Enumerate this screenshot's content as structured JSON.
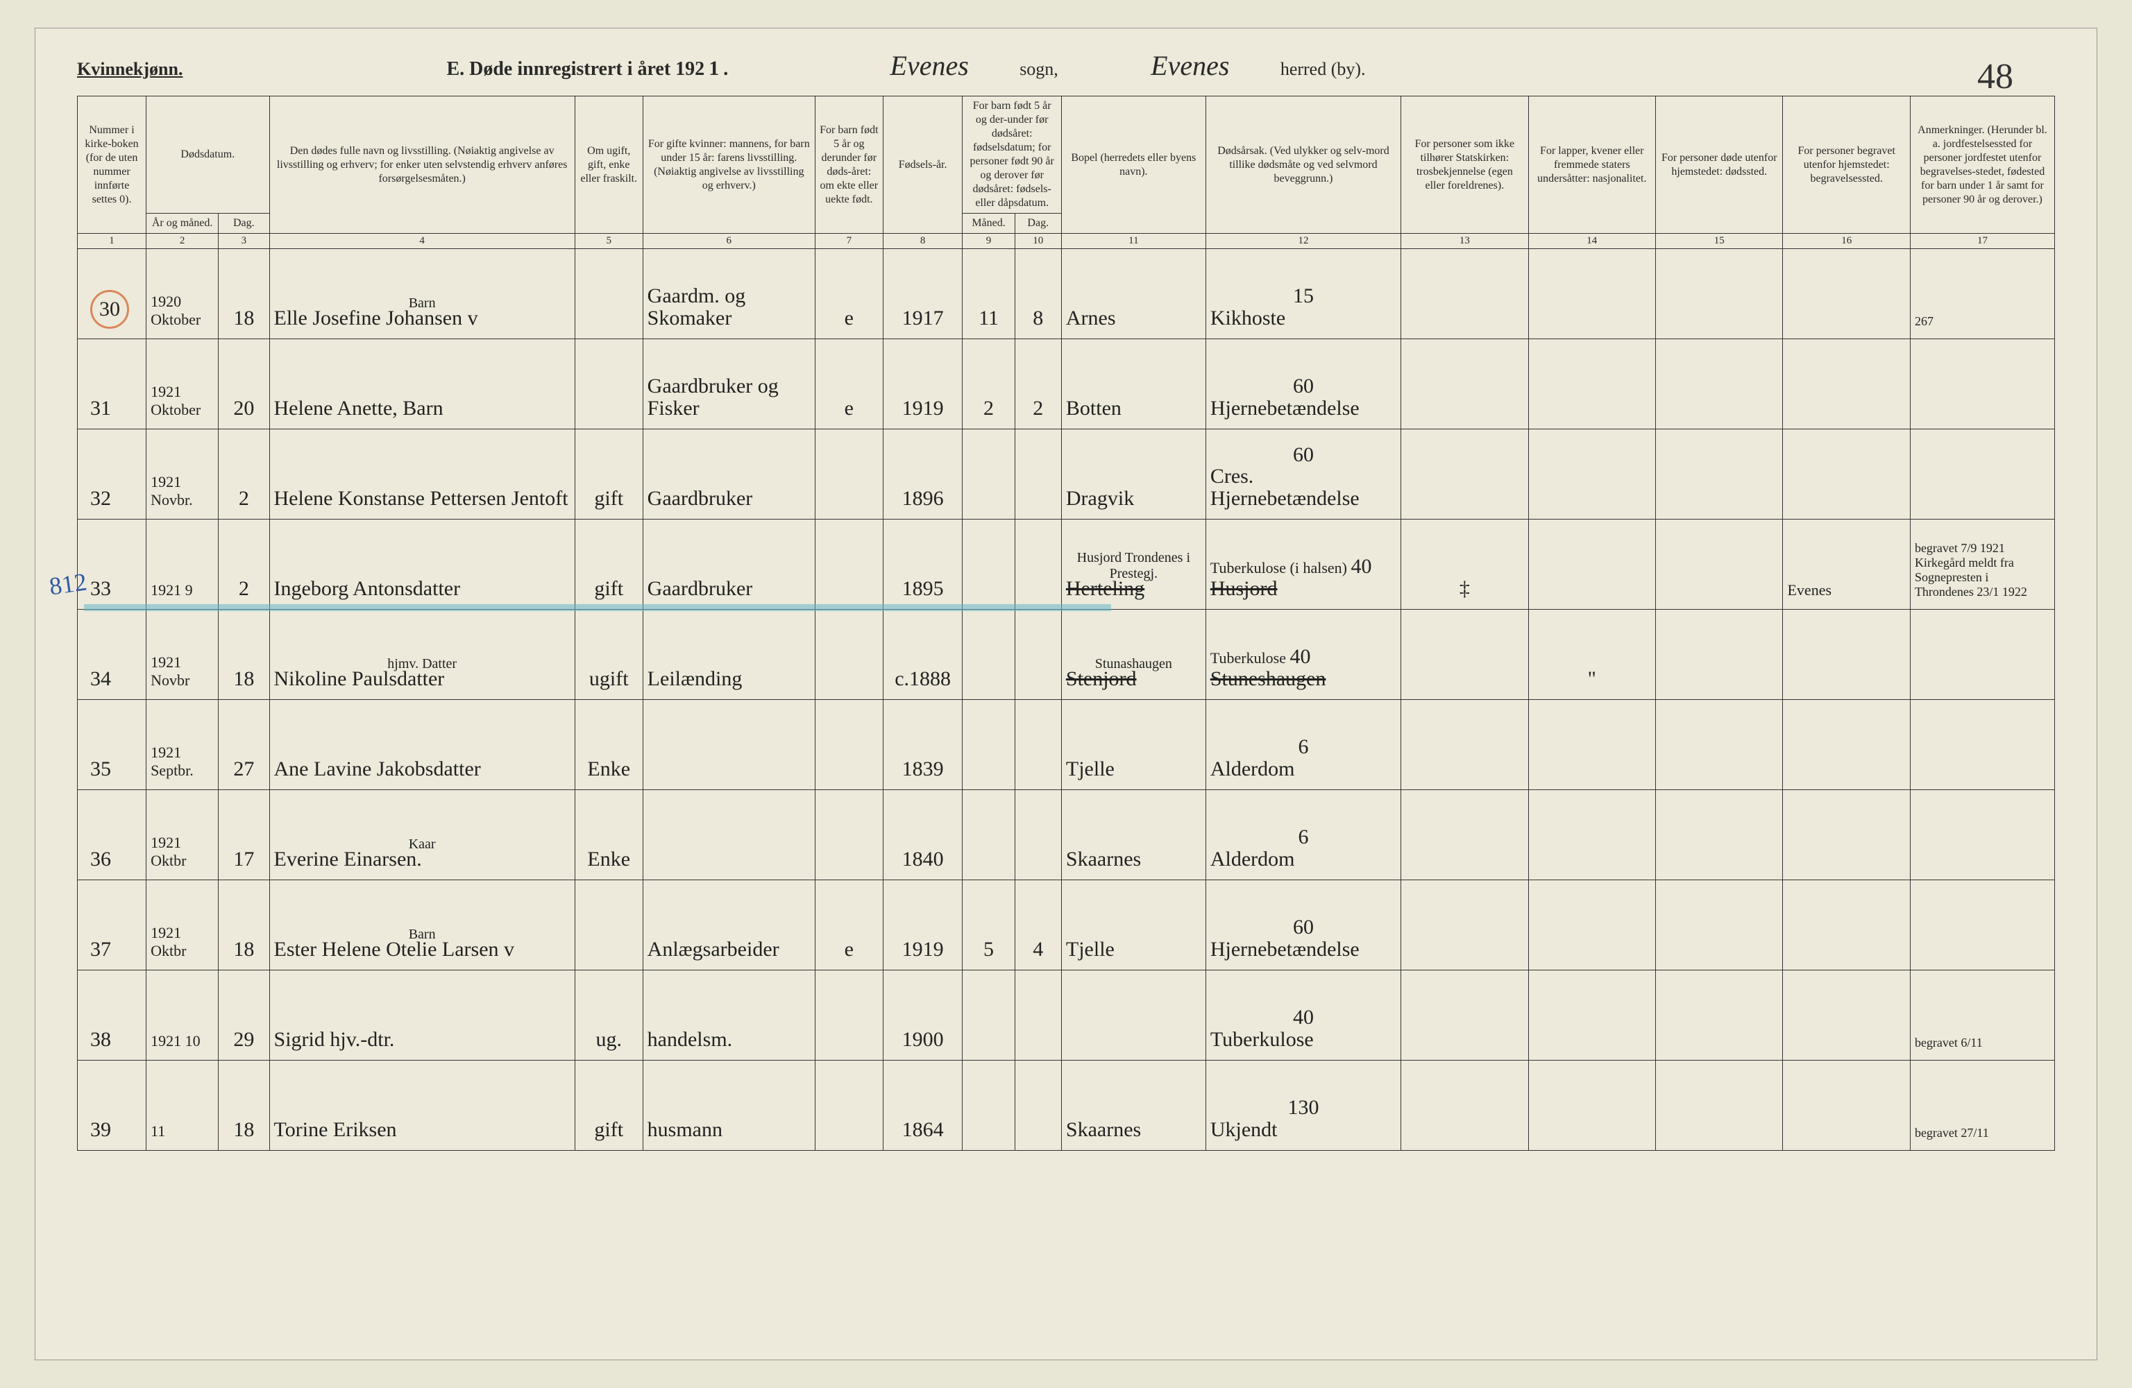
{
  "page_number": "48",
  "header": {
    "gender": "Kvinnekjønn.",
    "title_prefix": "E.   Døde innregistrert i året 192",
    "year_suffix": "1",
    "period": ".",
    "sogn_value": "Evenes",
    "sogn_label": "sogn,",
    "herred_value": "Evenes",
    "herred_label": "herred (by)."
  },
  "columns": {
    "c1": "Nummer i kirke-boken (for de uten nummer innførte settes 0).",
    "c2_top": "Dødsdatum.",
    "c2a": "År og måned.",
    "c2b": "Dag.",
    "c4": "Den dødes fulle navn og livsstilling. (Nøiaktig angivelse av livsstilling og erhverv; for enker uten selvstendig erhverv anføres forsørgelsesmåten.)",
    "c5": "Om ugift, gift, enke eller fraskilt.",
    "c6": "For gifte kvinner: mannens, for barn under 15 år: farens livsstilling. (Nøiaktig angivelse av livsstilling og erhverv.)",
    "c7": "For barn født 5 år og derunder før døds-året: om ekte eller uekte født.",
    "c8": "Fødsels-år.",
    "c9_top": "For barn født 5 år og der-under før dødsåret: fødselsdatum; for personer født 90 år og derover før dødsåret: fødsels- eller dåpsdatum.",
    "c9a": "Måned.",
    "c9b": "Dag.",
    "c11": "Bopel (herredets eller byens navn).",
    "c12": "Dødsårsak. (Ved ulykker og selv-mord tillike dødsmåte og ved selvmord beveggrunn.)",
    "c13": "For personer som ikke tilhører Statskirken: trosbekjennelse (egen eller foreldrenes).",
    "c14": "For lapper, kvener eller fremmede staters undersåtter: nasjonalitet.",
    "c15": "For personer døde utenfor hjemstedet: dødssted.",
    "c16": "For personer begravet utenfor hjemstedet: begravelsessted.",
    "c17": "Anmerkninger. (Herunder bl. a. jordfestelsessted for personer jordfestet utenfor begravelses-stedet, fødested for barn under 1 år samt for personer 90 år og derover.)"
  },
  "colnums": [
    "1",
    "2",
    "3",
    "4",
    "5",
    "6",
    "7",
    "8",
    "9",
    "10",
    "11",
    "12",
    "13",
    "14",
    "15",
    "16",
    "17"
  ],
  "blue_annotation": "812",
  "rows": [
    {
      "num": "30",
      "circled": true,
      "ym": "1920 Oktober",
      "day": "18",
      "name_above": "Barn",
      "name": "Elle Josefine Johansen v",
      "status": "",
      "parent": "Gaardm. og Skomaker",
      "ekte": "e",
      "birth": "1917",
      "bm": "11",
      "bd": "8",
      "home": "Arnes",
      "cause_num": "15",
      "cause": "Kikhoste",
      "c17": "267"
    },
    {
      "num": "31",
      "ym": "1921 Oktober",
      "day": "20",
      "name": "Helene Anette, Barn",
      "parent": "Gaardbruker og Fisker",
      "ekte": "e",
      "birth": "1919",
      "bm": "2",
      "bd": "2",
      "home": "Botten",
      "cause_num": "60",
      "cause": "Hjernebetændelse"
    },
    {
      "num": "32",
      "ym": "1921 Novbr.",
      "day": "2",
      "name": "Helene Konstanse Pettersen Jentoft",
      "status": "gift",
      "parent": "Gaardbruker",
      "birth": "1896",
      "home": "Dragvik",
      "cause_num": "60",
      "cause": "Cres. Hjernebetændelse"
    },
    {
      "num": "33",
      "blue_mark": true,
      "ym": "1921 9",
      "day": "2",
      "name": "Ingeborg Antonsdatter",
      "status": "gift",
      "parent": "Gaardbruker",
      "birth": "1895",
      "home_above": "Husjord Trondenes i Prestegj.",
      "home": "Herteling",
      "cause_num": "40",
      "cause_above": "Tuberkulose (i halsen)",
      "cause": "Husjord",
      "c13": "‡",
      "c16": "Evenes",
      "c17": "begravet 7/9 1921 Kirkegård meldt fra Sognepresten i Throndenes 23/1 1922"
    },
    {
      "num": "34",
      "ym": "1921 Novbr",
      "day": "18",
      "name_above": "hjmv. Datter",
      "name": "Nikoline   Paulsdatter",
      "status": "ugift",
      "parent": "Leilænding",
      "birth": "c.1888",
      "home_above": "Stunashaugen",
      "home": "Stenjord",
      "cause_num": "40",
      "cause_above": "Tuberkulose",
      "cause": "Stuneshaugen",
      "c14": "\""
    },
    {
      "num": "35",
      "ym": "1921 Septbr.",
      "day": "27",
      "name": "Ane Lavine Jakobsdatter",
      "status": "Enke",
      "birth": "1839",
      "home": "Tjelle",
      "cause_num": "6",
      "cause": "Alderdom"
    },
    {
      "num": "36",
      "ym": "1921 Oktbr",
      "day": "17",
      "name_above": "Kaar",
      "name": "Everine Einarsen.",
      "status": "Enke",
      "birth": "1840",
      "home": "Skaarnes",
      "cause_num": "6",
      "cause": "Alderdom"
    },
    {
      "num": "37",
      "ym": "1921 Oktbr",
      "day": "18",
      "name_above": "Barn",
      "name": "Ester Helene Otelie Larsen v",
      "parent": "Anlægsarbeider",
      "ekte": "e",
      "birth": "1919",
      "bm": "5",
      "bd": "4",
      "home": "Tjelle",
      "cause_num": "60",
      "cause": "Hjernebetændelse"
    },
    {
      "num": "38",
      "ym": "1921 10",
      "day": "29",
      "name": "Sigrid   hjv.-dtr.",
      "status": "ug.",
      "parent": "handelsm.",
      "birth": "1900",
      "cause_num": "40",
      "cause": "Tuberkulose",
      "c17": "begravet 6/11"
    },
    {
      "num": "39",
      "ym": "11",
      "day": "18",
      "name": "Torine Eriksen",
      "status": "gift",
      "parent": "husmann",
      "birth": "1864",
      "home": "Skaarnes",
      "cause_num": "130",
      "cause": "Ukjendt",
      "c17": "begravet 27/11"
    }
  ]
}
